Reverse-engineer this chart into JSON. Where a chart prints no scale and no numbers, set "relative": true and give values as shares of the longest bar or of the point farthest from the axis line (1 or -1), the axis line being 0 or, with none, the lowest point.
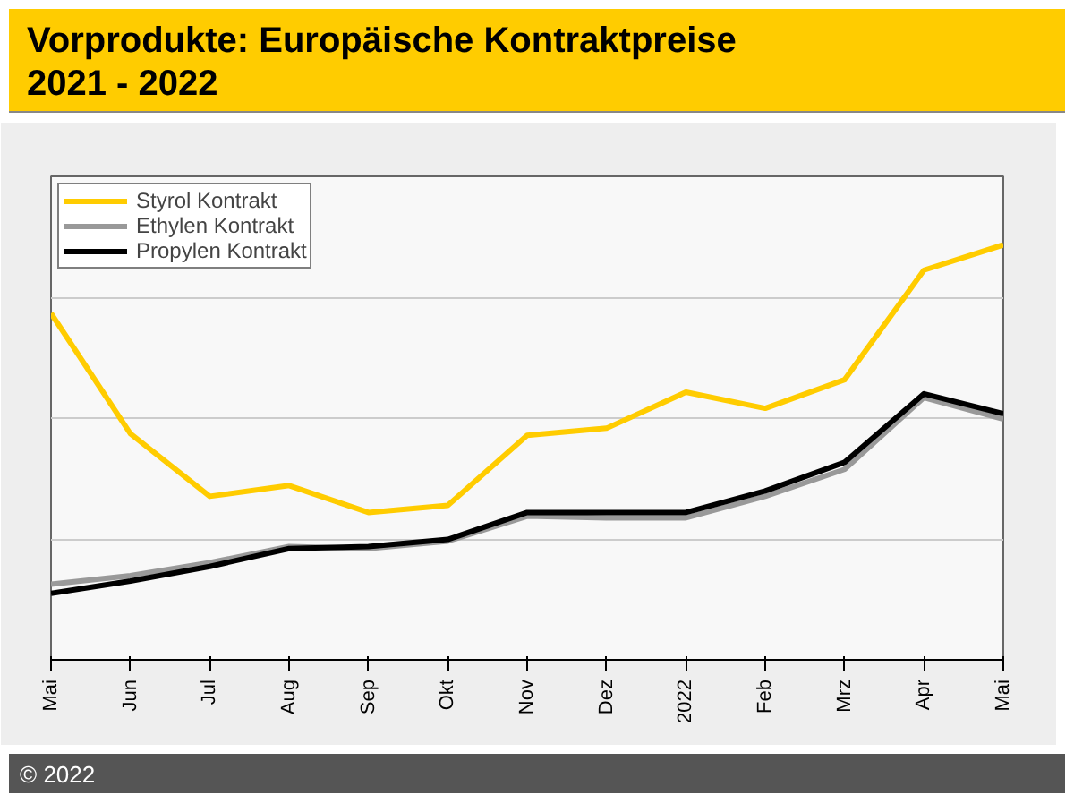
{
  "chart_data": {
    "type": "line",
    "title": "Vorprodukte: Europäische Kontraktpreise",
    "subtitle": "2021 - 2022",
    "categories": [
      "Mai",
      "Jun",
      "Jul",
      "Aug",
      "Sep",
      "Okt",
      "Nov",
      "Dez",
      "2022",
      "Feb",
      "Mrz",
      "Apr",
      "Mai"
    ],
    "relative": true,
    "grid": "y",
    "legend": "top left",
    "marker": "none",
    "line_style": "solid",
    "series": [
      {
        "name": "Styrol Kontrakt",
        "color": "#ffcc00",
        "values": [
          0.835,
          0.545,
          0.394,
          0.42,
          0.355,
          0.372,
          0.541,
          0.558,
          0.645,
          0.606,
          0.675,
          0.939,
          1
        ]
      },
      {
        "name": "Ethylen Kontrakt",
        "color": "#999999",
        "values": [
          0.182,
          0.203,
          0.234,
          0.273,
          0.268,
          0.286,
          0.346,
          0.342,
          0.342,
          0.394,
          0.459,
          0.632,
          0.58
        ]
      },
      {
        "name": "Propylen Kontrakt",
        "color": "#000000",
        "values": [
          0.16,
          0.19,
          0.225,
          0.268,
          0.273,
          0.29,
          0.355,
          0.355,
          0.355,
          0.407,
          0.476,
          0.641,
          0.593
        ]
      }
    ],
    "annotations": [
      "© 2022"
    ]
  }
}
